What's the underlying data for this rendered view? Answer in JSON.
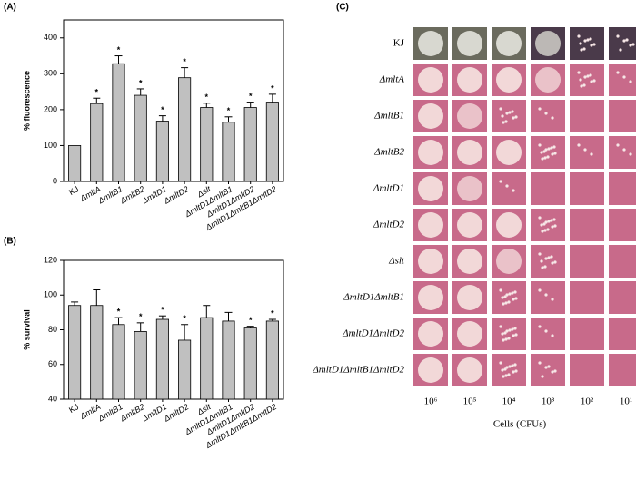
{
  "chart_data": [
    {
      "type": "bar",
      "label": "(A)",
      "ylabel": "% fluorescence",
      "categories": [
        "KJ",
        "ΔmltA",
        "ΔmltB1",
        "ΔmltB2",
        "ΔmltD1",
        "ΔmltD2",
        "Δslt",
        "ΔmltD1ΔmltB1",
        "ΔmltD1ΔmltD2",
        "ΔmltD1ΔmltB1ΔmltD2"
      ],
      "values": [
        100,
        217,
        328,
        240,
        168,
        289,
        206,
        165,
        206,
        221
      ],
      "errors": [
        0,
        15,
        22,
        18,
        15,
        28,
        12,
        15,
        15,
        22
      ],
      "significance": [
        null,
        "*",
        "*",
        "*",
        "*",
        "*",
        "*",
        "*",
        "*",
        "*"
      ],
      "color": "#c0c0c0",
      "ylim": [
        0,
        450
      ],
      "yticks": [
        0,
        100,
        200,
        300,
        400
      ]
    },
    {
      "type": "bar",
      "label": "(B)",
      "ylabel": "% survival",
      "categories": [
        "KJ",
        "ΔmltA",
        "ΔmltB1",
        "ΔmltB2",
        "ΔmltD1",
        "ΔmltD2",
        "Δslt",
        "ΔmltD1ΔmltB1",
        "ΔmltD1ΔmltD2",
        "ΔmltD1ΔmltB1ΔmltD2"
      ],
      "values": [
        94,
        94,
        83,
        79,
        86,
        74,
        87,
        85,
        81,
        85
      ],
      "errors": [
        2,
        9,
        4,
        5,
        2,
        9,
        7,
        5,
        1,
        1
      ],
      "significance": [
        null,
        null,
        "*",
        "*",
        "*",
        "*",
        null,
        null,
        "*",
        "*"
      ],
      "color": "#c0c0c0",
      "ylim": [
        40,
        120
      ],
      "yticks": [
        40,
        60,
        80,
        100,
        120
      ]
    }
  ],
  "plate_assay": {
    "label": "(C)",
    "rows": [
      "KJ",
      "ΔmltA",
      "ΔmltB1",
      "ΔmltB2",
      "ΔmltD1",
      "ΔmltD2",
      "Δslt",
      "ΔmltD1ΔmltB1",
      "ΔmltD1ΔmltD2",
      "ΔmltD1ΔmltB1ΔmltD2"
    ],
    "columns": [
      "10⁶",
      "10⁵",
      "10⁴",
      "10³",
      "10²",
      "10¹"
    ],
    "xlabel": "Cells (CFUs)"
  }
}
